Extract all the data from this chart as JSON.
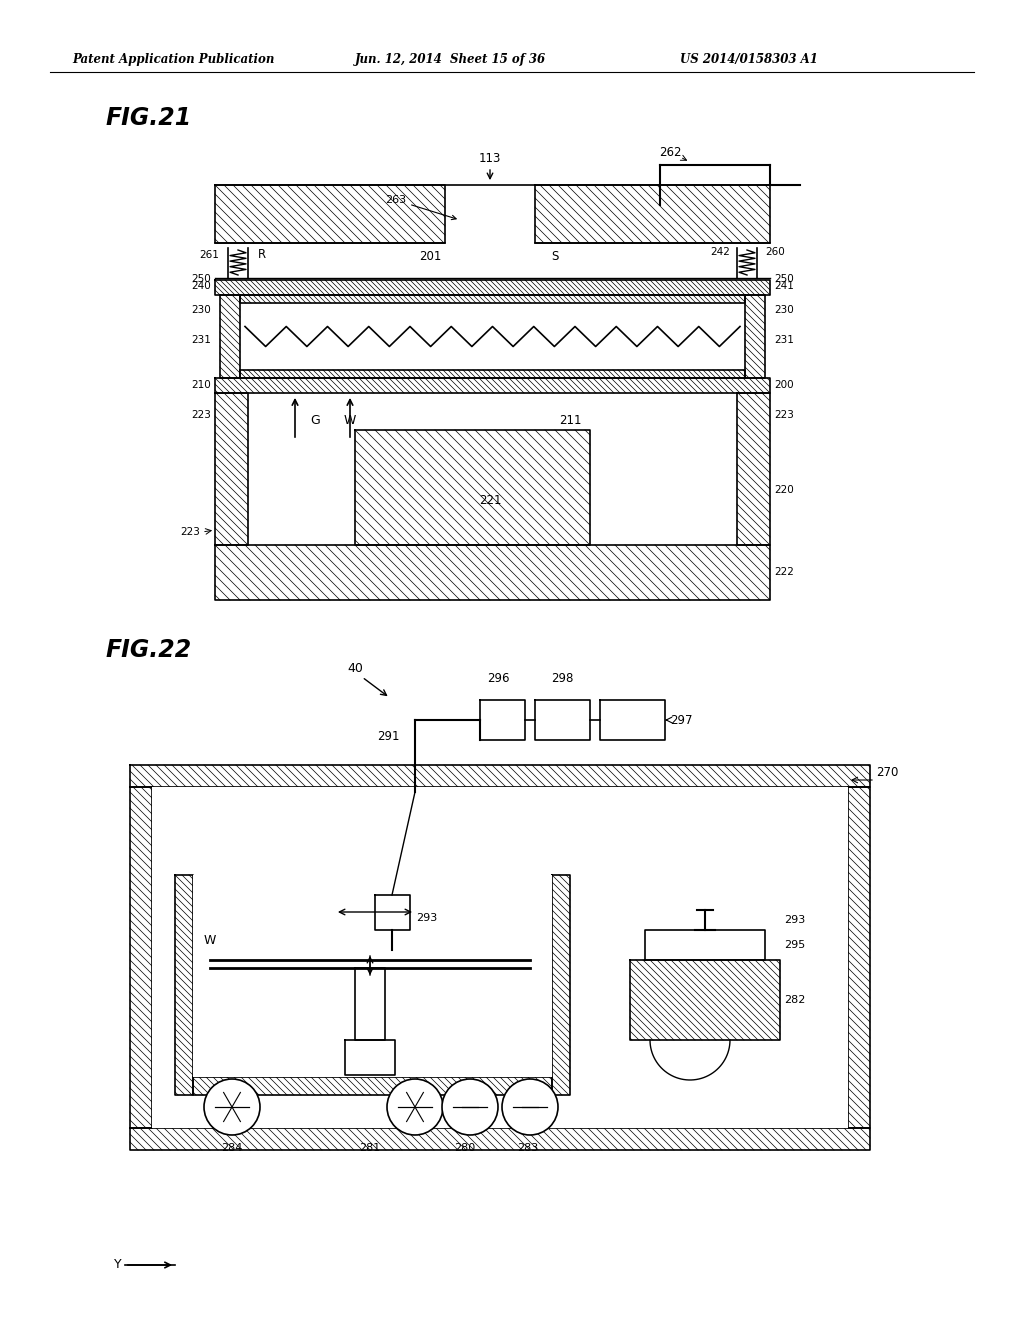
{
  "header_left": "Patent Application Publication",
  "header_mid": "Jun. 12, 2014  Sheet 15 of 36",
  "header_right": "US 2014/0158303 A1",
  "fig21_title": "FIG.21",
  "fig22_title": "FIG.22",
  "bg_color": "#ffffff",
  "line_color": "#000000"
}
